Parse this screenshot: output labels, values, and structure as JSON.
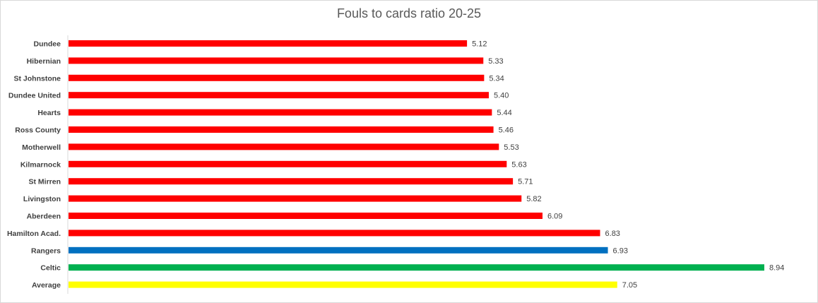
{
  "chart_data": {
    "type": "bar",
    "orientation": "horizontal",
    "title": "Fouls to cards ratio 20-25",
    "xlabel": "",
    "ylabel": "",
    "categories": [
      "Dundee",
      "Hibernian",
      "St Johnstone",
      "Dundee United",
      "Hearts",
      "Ross County",
      "Motherwell",
      "Kilmarnock",
      "St Mirren",
      "Livingston",
      "Aberdeen",
      "Hamilton Acad.",
      "Rangers",
      "Celtic",
      "Average"
    ],
    "values": [
      5.12,
      5.33,
      5.34,
      5.4,
      5.44,
      5.46,
      5.53,
      5.63,
      5.71,
      5.82,
      6.09,
      6.83,
      6.93,
      8.94,
      7.05
    ],
    "value_labels": [
      "5.12",
      "5.33",
      "5.34",
      "5.40",
      "5.44",
      "5.46",
      "5.53",
      "5.63",
      "5.71",
      "5.82",
      "6.09",
      "6.83",
      "6.93",
      "8.94",
      "7.05"
    ],
    "colors": [
      "#ff0000",
      "#ff0000",
      "#ff0000",
      "#ff0000",
      "#ff0000",
      "#ff0000",
      "#ff0000",
      "#ff0000",
      "#ff0000",
      "#ff0000",
      "#ff0000",
      "#ff0000",
      "#0070c0",
      "#00b050",
      "#ffff00"
    ],
    "xlim": [
      0,
      9
    ],
    "grid": false,
    "legend": "none"
  }
}
